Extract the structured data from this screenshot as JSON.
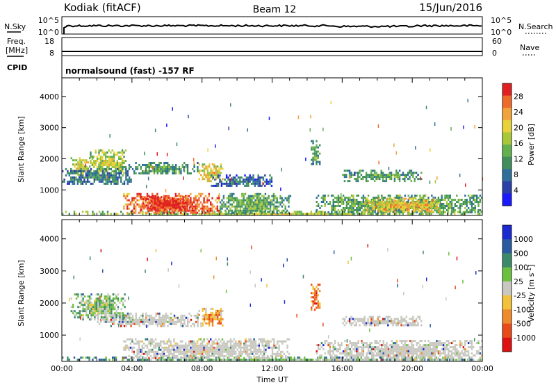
{
  "header": {
    "station": "Kodiak (fitACF)",
    "beam": "Beam 12",
    "date": "15/Jun/2016"
  },
  "strips": {
    "nsky_label": "N.Sky",
    "nsky_ticks": [
      "10^5",
      "10^0"
    ],
    "nsearch_label": "N.Search",
    "nsearch_ticks": [
      "10^5",
      "10^0"
    ],
    "freq_label_1": "Freq.",
    "freq_label_2": "[MHz]",
    "freq_ticks": [
      "18",
      "8"
    ],
    "nave_label": "Nave",
    "nave_ticks": [
      "60",
      "0"
    ],
    "cpid_label": "CPID",
    "cpid_text": "normalsound (fast) -157 RF"
  },
  "chart_data": [
    {
      "type": "heatmap",
      "panel": "power",
      "ylabel": "Slant Range [km]",
      "xlabel": "",
      "x_ticks": [
        "00:00",
        "04:00",
        "08:00",
        "12:00",
        "16:00",
        "20:00",
        "00:00"
      ],
      "y_ticks": [
        "1000",
        "2000",
        "3000",
        "4000"
      ],
      "ylim": [
        180,
        4600
      ],
      "xlim_hours": [
        0,
        24
      ],
      "colorbar_label": "Power [dB]",
      "colorbar_ticks": [
        "4",
        "8",
        "12",
        "16",
        "20",
        "24",
        "28"
      ],
      "colorbar_colors": [
        "#1a1aff",
        "#2b3fa8",
        "#2f6f9a",
        "#3f8e5c",
        "#63b04f",
        "#a8c83a",
        "#e8d23a",
        "#f2a23a",
        "#ee6a2a",
        "#e02020"
      ],
      "regions": [
        {
          "t0": 0.0,
          "t1": 24.0,
          "r0": 200,
          "r1": 330,
          "level": 0.45
        },
        {
          "t0": 0.5,
          "t1": 1.6,
          "r0": 1500,
          "r1": 2050,
          "level": 0.55
        },
        {
          "t0": 1.6,
          "t1": 3.6,
          "r0": 1500,
          "r1": 2300,
          "level": 0.5
        },
        {
          "t0": 0.0,
          "t1": 4.0,
          "r0": 1200,
          "r1": 1700,
          "level": 0.2
        },
        {
          "t0": 3.5,
          "t1": 9.0,
          "r0": 250,
          "r1": 900,
          "level": 0.85
        },
        {
          "t0": 4.5,
          "t1": 7.3,
          "r0": 350,
          "r1": 800,
          "level": 0.95
        },
        {
          "t0": 7.8,
          "t1": 9.2,
          "r0": 1300,
          "r1": 1850,
          "level": 0.6
        },
        {
          "t0": 3.8,
          "t1": 7.8,
          "r0": 1500,
          "r1": 1900,
          "level": 0.3
        },
        {
          "t0": 9.0,
          "t1": 13.0,
          "r0": 250,
          "r1": 900,
          "level": 0.35
        },
        {
          "t0": 8.5,
          "t1": 12.0,
          "r0": 1100,
          "r1": 1500,
          "level": 0.15
        },
        {
          "t0": 14.2,
          "t1": 14.7,
          "r0": 1800,
          "r1": 2600,
          "level": 0.3
        },
        {
          "t0": 14.5,
          "t1": 24.0,
          "r0": 250,
          "r1": 850,
          "level": 0.35
        },
        {
          "t0": 17.3,
          "t1": 21.5,
          "r0": 300,
          "r1": 750,
          "level": 0.65
        },
        {
          "t0": 16.0,
          "t1": 20.5,
          "r0": 1300,
          "r1": 1650,
          "level": 0.3
        }
      ]
    },
    {
      "type": "heatmap",
      "panel": "velocity",
      "ylabel": "Slant Range [km]",
      "xlabel": "Time UT",
      "x_ticks": [
        "00:00",
        "04:00",
        "08:00",
        "12:00",
        "16:00",
        "20:00",
        "00:00"
      ],
      "y_ticks": [
        "1000",
        "2000",
        "3000",
        "4000"
      ],
      "ylim": [
        180,
        4600
      ],
      "xlim_hours": [
        0,
        24
      ],
      "colorbar_label": "Velocity [m s-1]",
      "colorbar_ticks": [
        "1000",
        "500",
        "100",
        "25",
        "-25",
        "-100",
        "-500",
        "-1000"
      ],
      "colorbar_colors": [
        "#1a2ad0",
        "#2a5aa0",
        "#3d8a6a",
        "#6cc040",
        "#c8c8c0",
        "#f2c23a",
        "#ee8a2a",
        "#e84a1a",
        "#e01010"
      ],
      "regions": [
        {
          "t0": 0.0,
          "t1": 24.0,
          "r0": 200,
          "r1": 330,
          "level": 0.25
        },
        {
          "t0": 3.5,
          "t1": 13.0,
          "r0": 250,
          "r1": 900,
          "level": 0.5
        },
        {
          "t0": 14.5,
          "t1": 24.0,
          "r0": 250,
          "r1": 850,
          "level": 0.5
        },
        {
          "t0": 2.0,
          "t1": 8.0,
          "r0": 1300,
          "r1": 1700,
          "level": 0.5
        },
        {
          "t0": 0.5,
          "t1": 3.6,
          "r0": 1500,
          "r1": 2300,
          "level": 0.35
        },
        {
          "t0": 7.8,
          "t1": 9.2,
          "r0": 1300,
          "r1": 1850,
          "level": 0.65
        },
        {
          "t0": 14.2,
          "t1": 14.7,
          "r0": 1800,
          "r1": 2600,
          "level": 0.75
        },
        {
          "t0": 16.0,
          "t1": 20.5,
          "r0": 1300,
          "r1": 1600,
          "level": 0.5
        }
      ]
    }
  ]
}
